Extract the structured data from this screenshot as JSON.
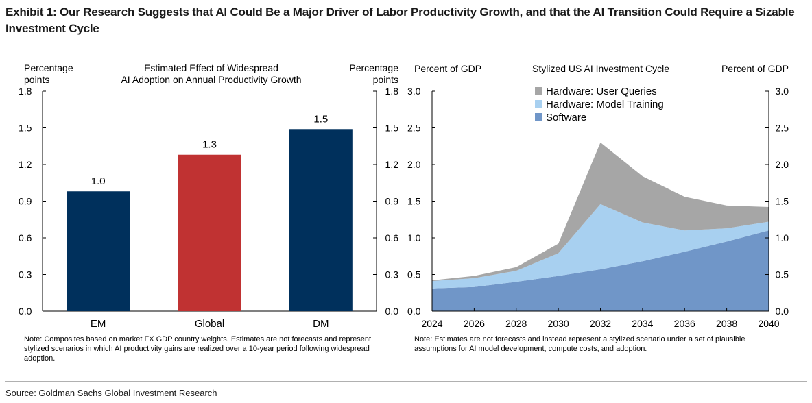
{
  "title": "Exhibit 1: Our Research Suggests that AI Could Be a Major Driver of Labor Productivity Growth, and that the AI Transition Could Require a Sizable Investment Cycle",
  "source": "Source: Goldman Sachs Global Investment Research",
  "chart_data": [
    {
      "type": "bar",
      "title_lines": [
        "Estimated Effect of Widespread",
        "AI Adoption on Annual Productivity Growth"
      ],
      "ylabel_left_lines": [
        "Percentage",
        "points"
      ],
      "ylabel_right_lines": [
        "Percentage",
        "points"
      ],
      "categories": [
        "EM",
        "Global",
        "DM"
      ],
      "values": [
        0.98,
        1.28,
        1.49
      ],
      "data_labels": [
        "1.0",
        "1.3",
        "1.5"
      ],
      "colors": [
        "#00305c",
        "#c03232",
        "#00305c"
      ],
      "ylim": [
        0,
        1.8
      ],
      "yticks": [
        "0.0",
        "0.3",
        "0.6",
        "0.9",
        "1.2",
        "1.5",
        "1.8"
      ],
      "note": "Note: Composites based on market FX GDP country weights. Estimates are not forecasts and represent stylized scenarios in which AI productivity gains are realized over a 10-year period following widespread adoption."
    },
    {
      "type": "area",
      "stacked": true,
      "title": "Stylized US AI Investment Cycle",
      "ylabel_left": "Percent of GDP",
      "ylabel_right": "Percent of GDP",
      "x": [
        2024,
        2026,
        2028,
        2030,
        2032,
        2034,
        2036,
        2038,
        2040
      ],
      "xticks": [
        "2024",
        "2026",
        "2028",
        "2030",
        "2032",
        "2034",
        "2036",
        "2038",
        "2040"
      ],
      "ylim": [
        0,
        3.0
      ],
      "yticks": [
        "0.0",
        "0.5",
        "1.0",
        "1.5",
        "2.0",
        "2.5",
        "3.0"
      ],
      "legend_position": "top-left",
      "series": [
        {
          "name": "Software",
          "color": "#7096c8",
          "values": [
            0.31,
            0.33,
            0.4,
            0.48,
            0.57,
            0.68,
            0.81,
            0.95,
            1.1
          ]
        },
        {
          "name": "Hardware: Model Training",
          "color": "#a8d0f0",
          "values": [
            0.1,
            0.12,
            0.15,
            0.31,
            0.89,
            0.53,
            0.29,
            0.18,
            0.12
          ]
        },
        {
          "name": "Hardware: User Queries",
          "color": "#a6a6a6",
          "values": [
            0.01,
            0.03,
            0.05,
            0.13,
            0.84,
            0.63,
            0.46,
            0.31,
            0.2
          ]
        }
      ],
      "note": "Note: Estimates are not forecasts and instead represent a stylized scenario under a set of plausible assumptions for AI model development, compute costs, and adoption."
    }
  ]
}
